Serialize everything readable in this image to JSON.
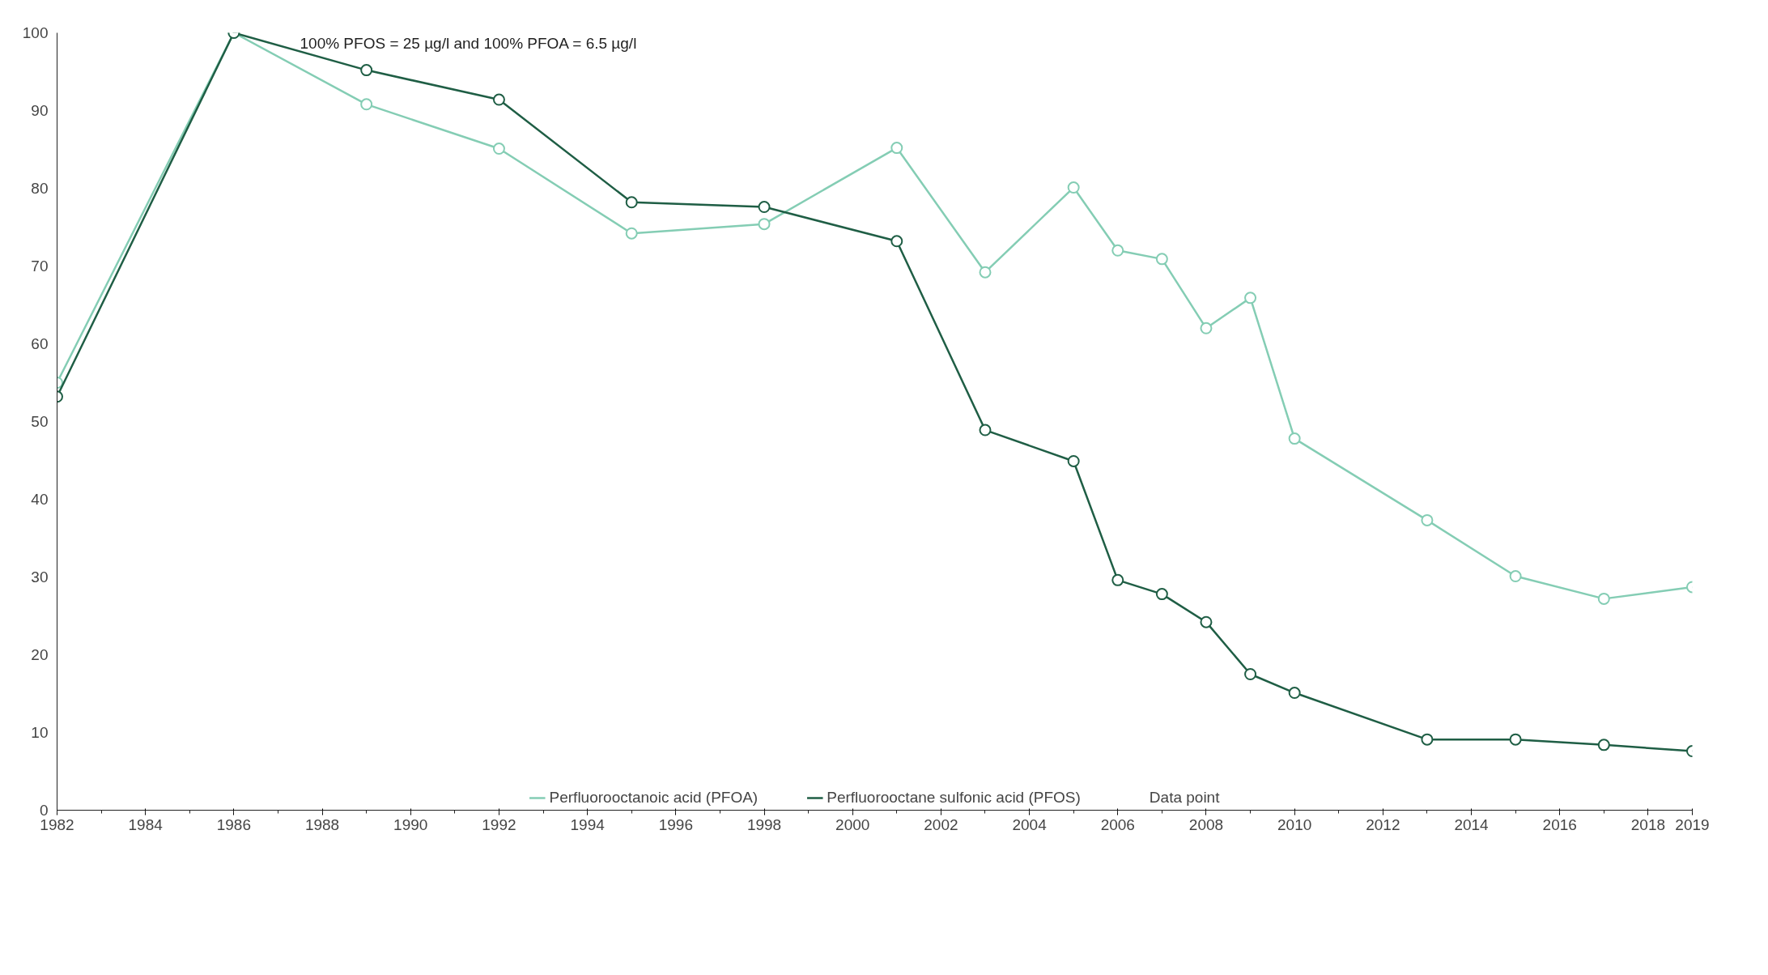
{
  "chart_data": {
    "type": "line",
    "x": [
      1982,
      1986,
      1989,
      1992,
      1995,
      1998,
      2001,
      2003,
      2005,
      2006,
      2007,
      2008,
      2009,
      2010,
      2013,
      2015,
      2017,
      2019
    ],
    "series": [
      {
        "name": "Perfluorooctanoic acid (PFOA)",
        "color": "#84cdb4",
        "values": [
          55,
          100,
          90.8,
          85.1,
          74.2,
          75.4,
          85.2,
          69.2,
          80.1,
          72.0,
          70.9,
          62.0,
          65.9,
          47.8,
          37.3,
          30.1,
          27.2,
          28.7
        ]
      },
      {
        "name": "Perfluorooctane sulfonic acid (PFOS)",
        "color": "#1f5e45",
        "values": [
          53.2,
          100,
          95.2,
          91.4,
          78.2,
          77.6,
          73.2,
          48.9,
          44.9,
          29.6,
          27.8,
          24.2,
          17.5,
          15.1,
          9.1,
          9.1,
          8.4,
          7.6
        ]
      }
    ],
    "annotations": [
      "100% PFOS = 25 µg/l and 100% PFOA = 6.5 µg/l",
      "Data point"
    ],
    "xlim": [
      1982,
      2019
    ],
    "xticks": [
      1982,
      1984,
      1986,
      1988,
      1990,
      1992,
      1994,
      1996,
      1998,
      2000,
      2002,
      2004,
      2006,
      2008,
      2010,
      2012,
      2014,
      2016,
      2018,
      2019
    ],
    "ylim": [
      0,
      100
    ],
    "yticks": [
      0,
      10,
      20,
      30,
      40,
      50,
      60,
      70,
      80,
      90,
      100
    ],
    "marker": "circle",
    "grid": false,
    "legend": "bottom"
  }
}
